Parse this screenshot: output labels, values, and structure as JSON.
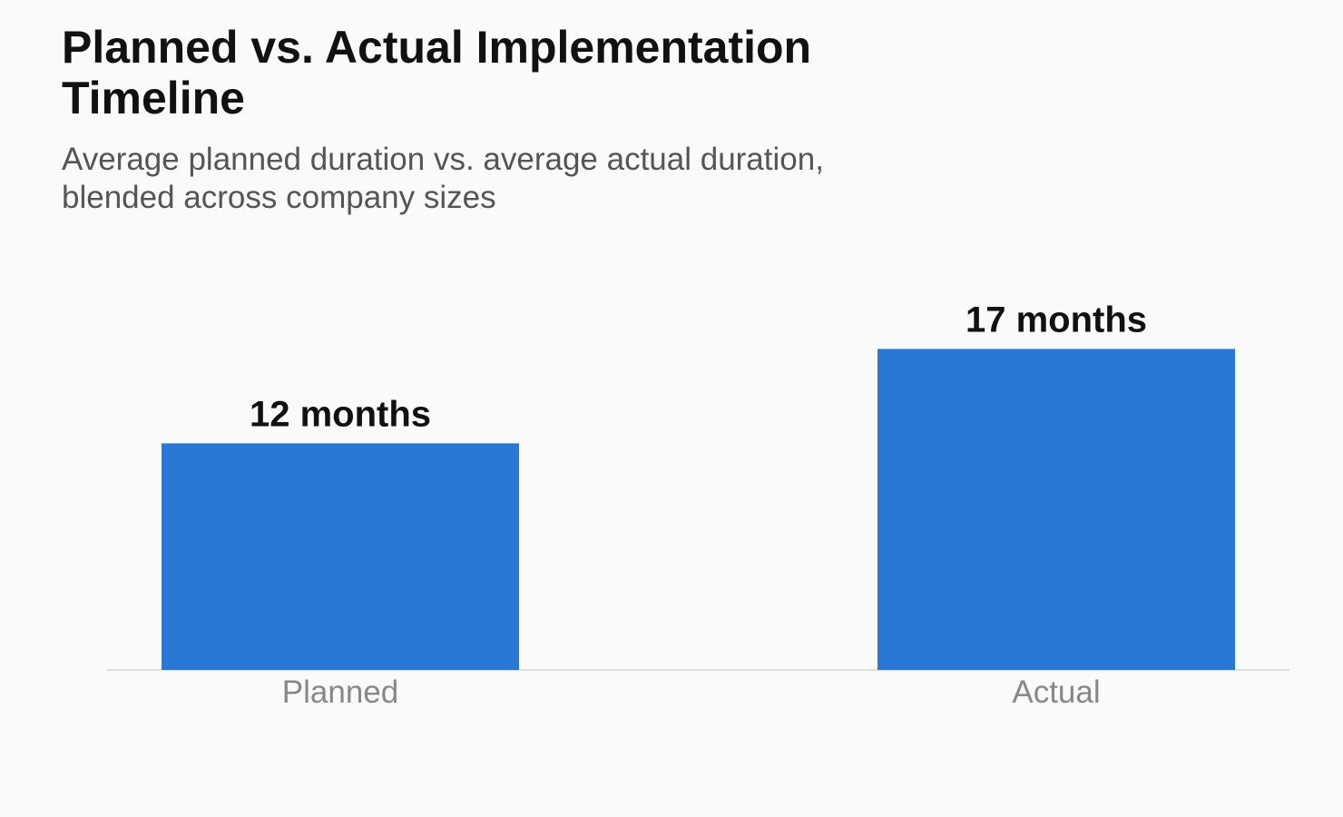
{
  "header": {
    "title": "Planned vs. Actual Implementation Timeline",
    "subtitle": "Average planned duration vs. average actual duration, blended across company sizes"
  },
  "colors": {
    "bar": "#2a78d6",
    "axis": "#dddddd",
    "background": "#fafafa"
  },
  "chart_data": {
    "type": "bar",
    "title": "Planned vs. Actual Implementation Timeline",
    "subtitle": "Average planned duration vs. average actual duration, blended across company sizes",
    "categories": [
      "Planned",
      "Actual"
    ],
    "values": [
      12,
      17
    ],
    "data_labels": [
      "12 months",
      "17 months"
    ],
    "xlabel": "",
    "ylabel": "",
    "grid": false,
    "legend": "none"
  }
}
